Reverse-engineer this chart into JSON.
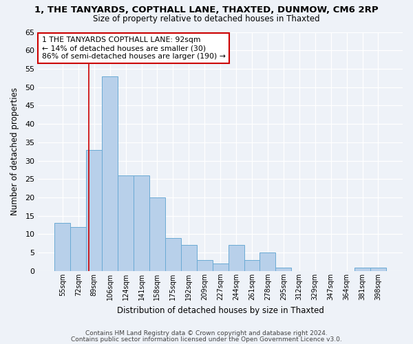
{
  "title_line1": "1, THE TANYARDS, COPTHALL LANE, THAXTED, DUNMOW, CM6 2RP",
  "title_line2": "Size of property relative to detached houses in Thaxted",
  "xlabel": "Distribution of detached houses by size in Thaxted",
  "ylabel": "Number of detached properties",
  "bin_labels": [
    "55sqm",
    "72sqm",
    "89sqm",
    "106sqm",
    "124sqm",
    "141sqm",
    "158sqm",
    "175sqm",
    "192sqm",
    "209sqm",
    "227sqm",
    "244sqm",
    "261sqm",
    "278sqm",
    "295sqm",
    "312sqm",
    "329sqm",
    "347sqm",
    "364sqm",
    "381sqm",
    "398sqm"
  ],
  "bar_heights": [
    13,
    12,
    33,
    53,
    26,
    26,
    20,
    9,
    7,
    3,
    2,
    7,
    3,
    5,
    1,
    0,
    0,
    0,
    0,
    1,
    1
  ],
  "bar_color": "#b8d0ea",
  "bar_edge_color": "#6aaad4",
  "ylim": [
    0,
    65
  ],
  "yticks": [
    0,
    5,
    10,
    15,
    20,
    25,
    30,
    35,
    40,
    45,
    50,
    55,
    60,
    65
  ],
  "annotation_text": "1 THE TANYARDS COPTHALL LANE: 92sqm\n← 14% of detached houses are smaller (30)\n86% of semi-detached houses are larger (190) →",
  "annotation_box_color": "#ffffff",
  "annotation_box_edge": "#cc0000",
  "red_line_color": "#cc0000",
  "footer_text1": "Contains HM Land Registry data © Crown copyright and database right 2024.",
  "footer_text2": "Contains public sector information licensed under the Open Government Licence v3.0.",
  "background_color": "#eef2f8"
}
